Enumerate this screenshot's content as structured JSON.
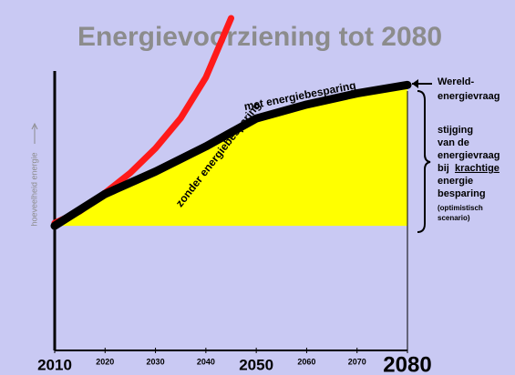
{
  "chart_data": {
    "type": "line",
    "title": "Energievoorziening tot 2080",
    "y_label": "hoeveelheid energie",
    "xlim": [
      2010,
      2080
    ],
    "xticks": [
      2010,
      2020,
      2030,
      2040,
      2050,
      2060,
      2070,
      2080
    ],
    "ylim": [
      0,
      100
    ],
    "series": [
      {
        "name": "zonder energiebesparing",
        "color": "#ff1a1a",
        "x": [
          2010,
          2015,
          2020,
          2025,
          2030,
          2035,
          2040,
          2045
        ],
        "values": [
          45.6,
          49.8,
          56.4,
          63.5,
          72.3,
          83.1,
          97.7,
          118.9
        ]
      },
      {
        "name": "met energiebesparing",
        "color": "#000000",
        "fill": "#ffff00",
        "x": [
          2010,
          2020,
          2030,
          2040,
          2050,
          2060,
          2070,
          2080
        ],
        "values": [
          44.6,
          56,
          64,
          73,
          83,
          88,
          92,
          95
        ]
      }
    ],
    "annotations": {
      "demand": [
        "Wereld-",
        "energievraag"
      ],
      "increase": [
        "stijging",
        "van de",
        "energievraag",
        "bij",
        "krachtige",
        "energie",
        "besparing",
        "(optimistisch",
        "scenario)"
      ]
    }
  }
}
